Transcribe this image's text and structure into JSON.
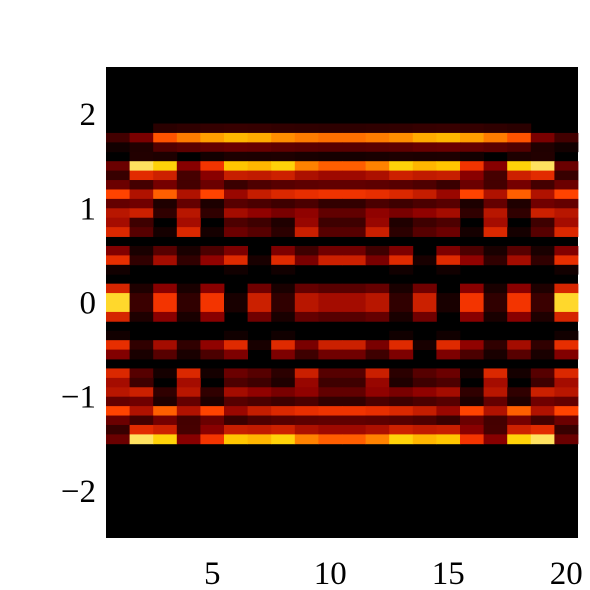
{
  "chart_data": {
    "type": "heatmap",
    "title": "",
    "xlabel": "",
    "ylabel": "",
    "xlim": [
      0.5,
      20.5
    ],
    "ylim": [
      -2.5,
      2.5
    ],
    "x_ticks": [
      5,
      10,
      15,
      20
    ],
    "x_tick_labels": [
      "5",
      "10",
      "15",
      "20"
    ],
    "y_ticks": [
      2,
      1,
      0,
      -1,
      -2
    ],
    "y_tick_labels": [
      "2",
      "1",
      "0",
      "−1",
      "−2"
    ],
    "columns": 20,
    "rows": 40,
    "row_height": 0.1,
    "value_range": [
      0,
      1
    ],
    "colormap": [
      "#000000",
      "#8c0000",
      "#ff3a00",
      "#ffd000",
      "#ffffff"
    ],
    "grid": false,
    "legend": "none",
    "band_centers": [
      1.74,
      1.42,
      1.17,
      0.98,
      0.79,
      0.48,
      0.08,
      -0.08,
      -0.48,
      -0.79,
      -0.98,
      -1.17,
      -1.42,
      -1.74
    ],
    "bands": [
      {
        "y": 1.74,
        "v": [
          0.12,
          0.22,
          0.55,
          0.62,
          0.68,
          0.72,
          0.7,
          0.65,
          0.62,
          0.6,
          0.6,
          0.62,
          0.65,
          0.7,
          0.72,
          0.68,
          0.62,
          0.55,
          0.22,
          0.12
        ]
      },
      {
        "y": 1.42,
        "v": [
          0.22,
          0.98,
          0.88,
          0.28,
          0.55,
          0.85,
          0.82,
          0.88,
          0.72,
          0.65,
          0.65,
          0.72,
          0.88,
          0.82,
          0.85,
          0.55,
          0.28,
          0.88,
          0.98,
          0.22
        ]
      },
      {
        "y": 1.17,
        "v": [
          0.55,
          0.35,
          0.6,
          0.35,
          0.55,
          0.3,
          0.4,
          0.45,
          0.48,
          0.5,
          0.5,
          0.48,
          0.45,
          0.4,
          0.3,
          0.55,
          0.35,
          0.6,
          0.35,
          0.55
        ]
      },
      {
        "y": 0.98,
        "v": [
          0.4,
          0.45,
          0.1,
          0.4,
          0.1,
          0.35,
          0.3,
          0.25,
          0.3,
          0.2,
          0.2,
          0.3,
          0.25,
          0.3,
          0.35,
          0.1,
          0.4,
          0.1,
          0.45,
          0.4
        ]
      },
      {
        "y": 0.79,
        "v": [
          0.55,
          0.2,
          0.05,
          0.55,
          0.05,
          0.25,
          0.2,
          0.1,
          0.5,
          0.2,
          0.2,
          0.5,
          0.1,
          0.2,
          0.25,
          0.05,
          0.55,
          0.05,
          0.2,
          0.55
        ]
      },
      {
        "y": 0.48,
        "v": [
          0.52,
          0.1,
          0.35,
          0.1,
          0.3,
          0.5,
          0.05,
          0.5,
          0.25,
          0.45,
          0.45,
          0.25,
          0.5,
          0.05,
          0.5,
          0.3,
          0.1,
          0.35,
          0.1,
          0.52
        ]
      },
      {
        "y": 0.08,
        "v": [
          0.92,
          0.12,
          0.55,
          0.1,
          0.55,
          0.05,
          0.45,
          0.1,
          0.4,
          0.35,
          0.35,
          0.4,
          0.1,
          0.45,
          0.05,
          0.55,
          0.1,
          0.55,
          0.12,
          0.92
        ]
      },
      {
        "y": -0.08,
        "v": [
          0.92,
          0.12,
          0.55,
          0.1,
          0.55,
          0.05,
          0.45,
          0.1,
          0.4,
          0.35,
          0.35,
          0.4,
          0.1,
          0.45,
          0.05,
          0.55,
          0.1,
          0.55,
          0.12,
          0.92
        ]
      },
      {
        "y": -0.48,
        "v": [
          0.52,
          0.1,
          0.35,
          0.1,
          0.3,
          0.5,
          0.05,
          0.5,
          0.25,
          0.45,
          0.45,
          0.25,
          0.5,
          0.05,
          0.5,
          0.3,
          0.1,
          0.35,
          0.1,
          0.52
        ]
      },
      {
        "y": -0.79,
        "v": [
          0.55,
          0.2,
          0.05,
          0.55,
          0.05,
          0.25,
          0.2,
          0.1,
          0.5,
          0.2,
          0.2,
          0.5,
          0.1,
          0.2,
          0.25,
          0.05,
          0.55,
          0.05,
          0.2,
          0.55
        ]
      },
      {
        "y": -0.98,
        "v": [
          0.4,
          0.45,
          0.1,
          0.4,
          0.1,
          0.35,
          0.3,
          0.25,
          0.3,
          0.2,
          0.2,
          0.3,
          0.25,
          0.3,
          0.35,
          0.1,
          0.4,
          0.1,
          0.45,
          0.4
        ]
      },
      {
        "y": -1.17,
        "v": [
          0.55,
          0.35,
          0.6,
          0.35,
          0.55,
          0.3,
          0.4,
          0.45,
          0.48,
          0.5,
          0.5,
          0.48,
          0.45,
          0.4,
          0.3,
          0.55,
          0.35,
          0.6,
          0.35,
          0.55
        ]
      },
      {
        "y": -1.42,
        "v": [
          0.22,
          0.98,
          0.88,
          0.28,
          0.55,
          0.85,
          0.82,
          0.88,
          0.72,
          0.65,
          0.65,
          0.72,
          0.88,
          0.82,
          0.85,
          0.55,
          0.28,
          0.88,
          0.98,
          0.22
        ]
      },
      {
        "y": -1.74,
        "v": [
          0.12,
          0.22,
          0.55,
          0.62,
          0.68,
          0.72,
          0.7,
          0.65,
          0.62,
          0.6,
          0.6,
          0.62,
          0.65,
          0.7,
          0.72,
          0.68,
          0.62,
          0.55,
          0.22,
          0.12
        ]
      }
    ]
  }
}
